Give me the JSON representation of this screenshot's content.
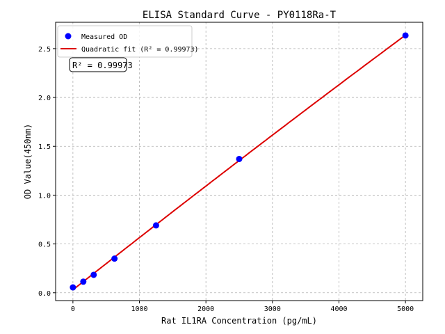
{
  "chart_data": {
    "type": "scatter",
    "title": "ELISA Standard Curve - PY0118Ra-T",
    "xlabel": "Rat IL1RA Concentration (pg/mL)",
    "ylabel": "OD Value(450nm)",
    "xlim": [
      -260,
      5260
    ],
    "ylim": [
      -0.08,
      2.77
    ],
    "xticks": [
      0,
      1000,
      2000,
      3000,
      4000,
      5000
    ],
    "yticks": [
      0.0,
      0.5,
      1.0,
      1.5,
      2.0,
      2.5
    ],
    "xtick_labels": [
      "0",
      "1000",
      "2000",
      "3000",
      "4000",
      "5000"
    ],
    "ytick_labels": [
      "0.0",
      "0.5",
      "1.0",
      "1.5",
      "2.0",
      "2.5"
    ],
    "grid": true,
    "legend_position": "top-left",
    "series": [
      {
        "name": "Measured OD",
        "kind": "scatter",
        "color": "#0000ff",
        "x": [
          0,
          156.25,
          312.5,
          625,
          1250,
          2500,
          5000
        ],
        "y": [
          0.055,
          0.114,
          0.184,
          0.35,
          0.69,
          1.37,
          2.635
        ]
      },
      {
        "name": "Quadratic fit (R² = 0.99973)",
        "kind": "line",
        "color": "#dd0000"
      }
    ],
    "annotation": "R² = 0.99973"
  }
}
